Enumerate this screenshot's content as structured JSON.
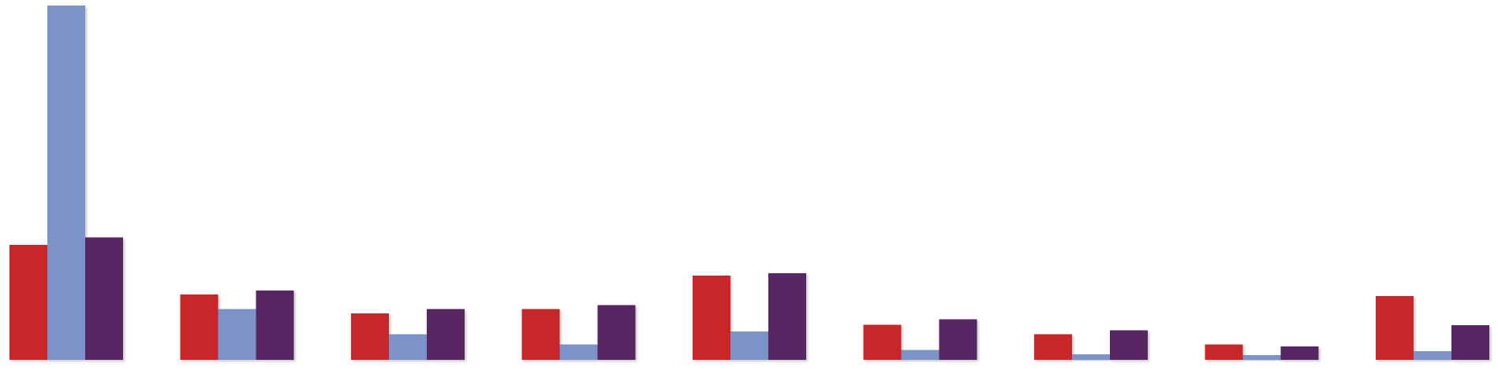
{
  "chart_data": {
    "type": "bar",
    "title": "",
    "xlabel": "",
    "ylabel": "",
    "categories": [
      "",
      "",
      "",
      "",
      "",
      "",
      "",
      "",
      ""
    ],
    "ylim": [
      0,
      100
    ],
    "grid": false,
    "legend": "none",
    "series": [
      {
        "color": "#C9252B",
        "values": [
          32.4,
          18.4,
          13.1,
          14.3,
          23.8,
          9.9,
          7.2,
          4.3,
          18.0
        ]
      },
      {
        "color": "#7B93CA",
        "values": [
          100.0,
          14.3,
          7.2,
          4.3,
          8.0,
          2.8,
          1.6,
          1.3,
          2.5
        ]
      },
      {
        "color": "#582563",
        "values": [
          34.6,
          19.6,
          14.3,
          15.5,
          24.4,
          11.5,
          8.3,
          3.8,
          9.8
        ]
      }
    ]
  }
}
